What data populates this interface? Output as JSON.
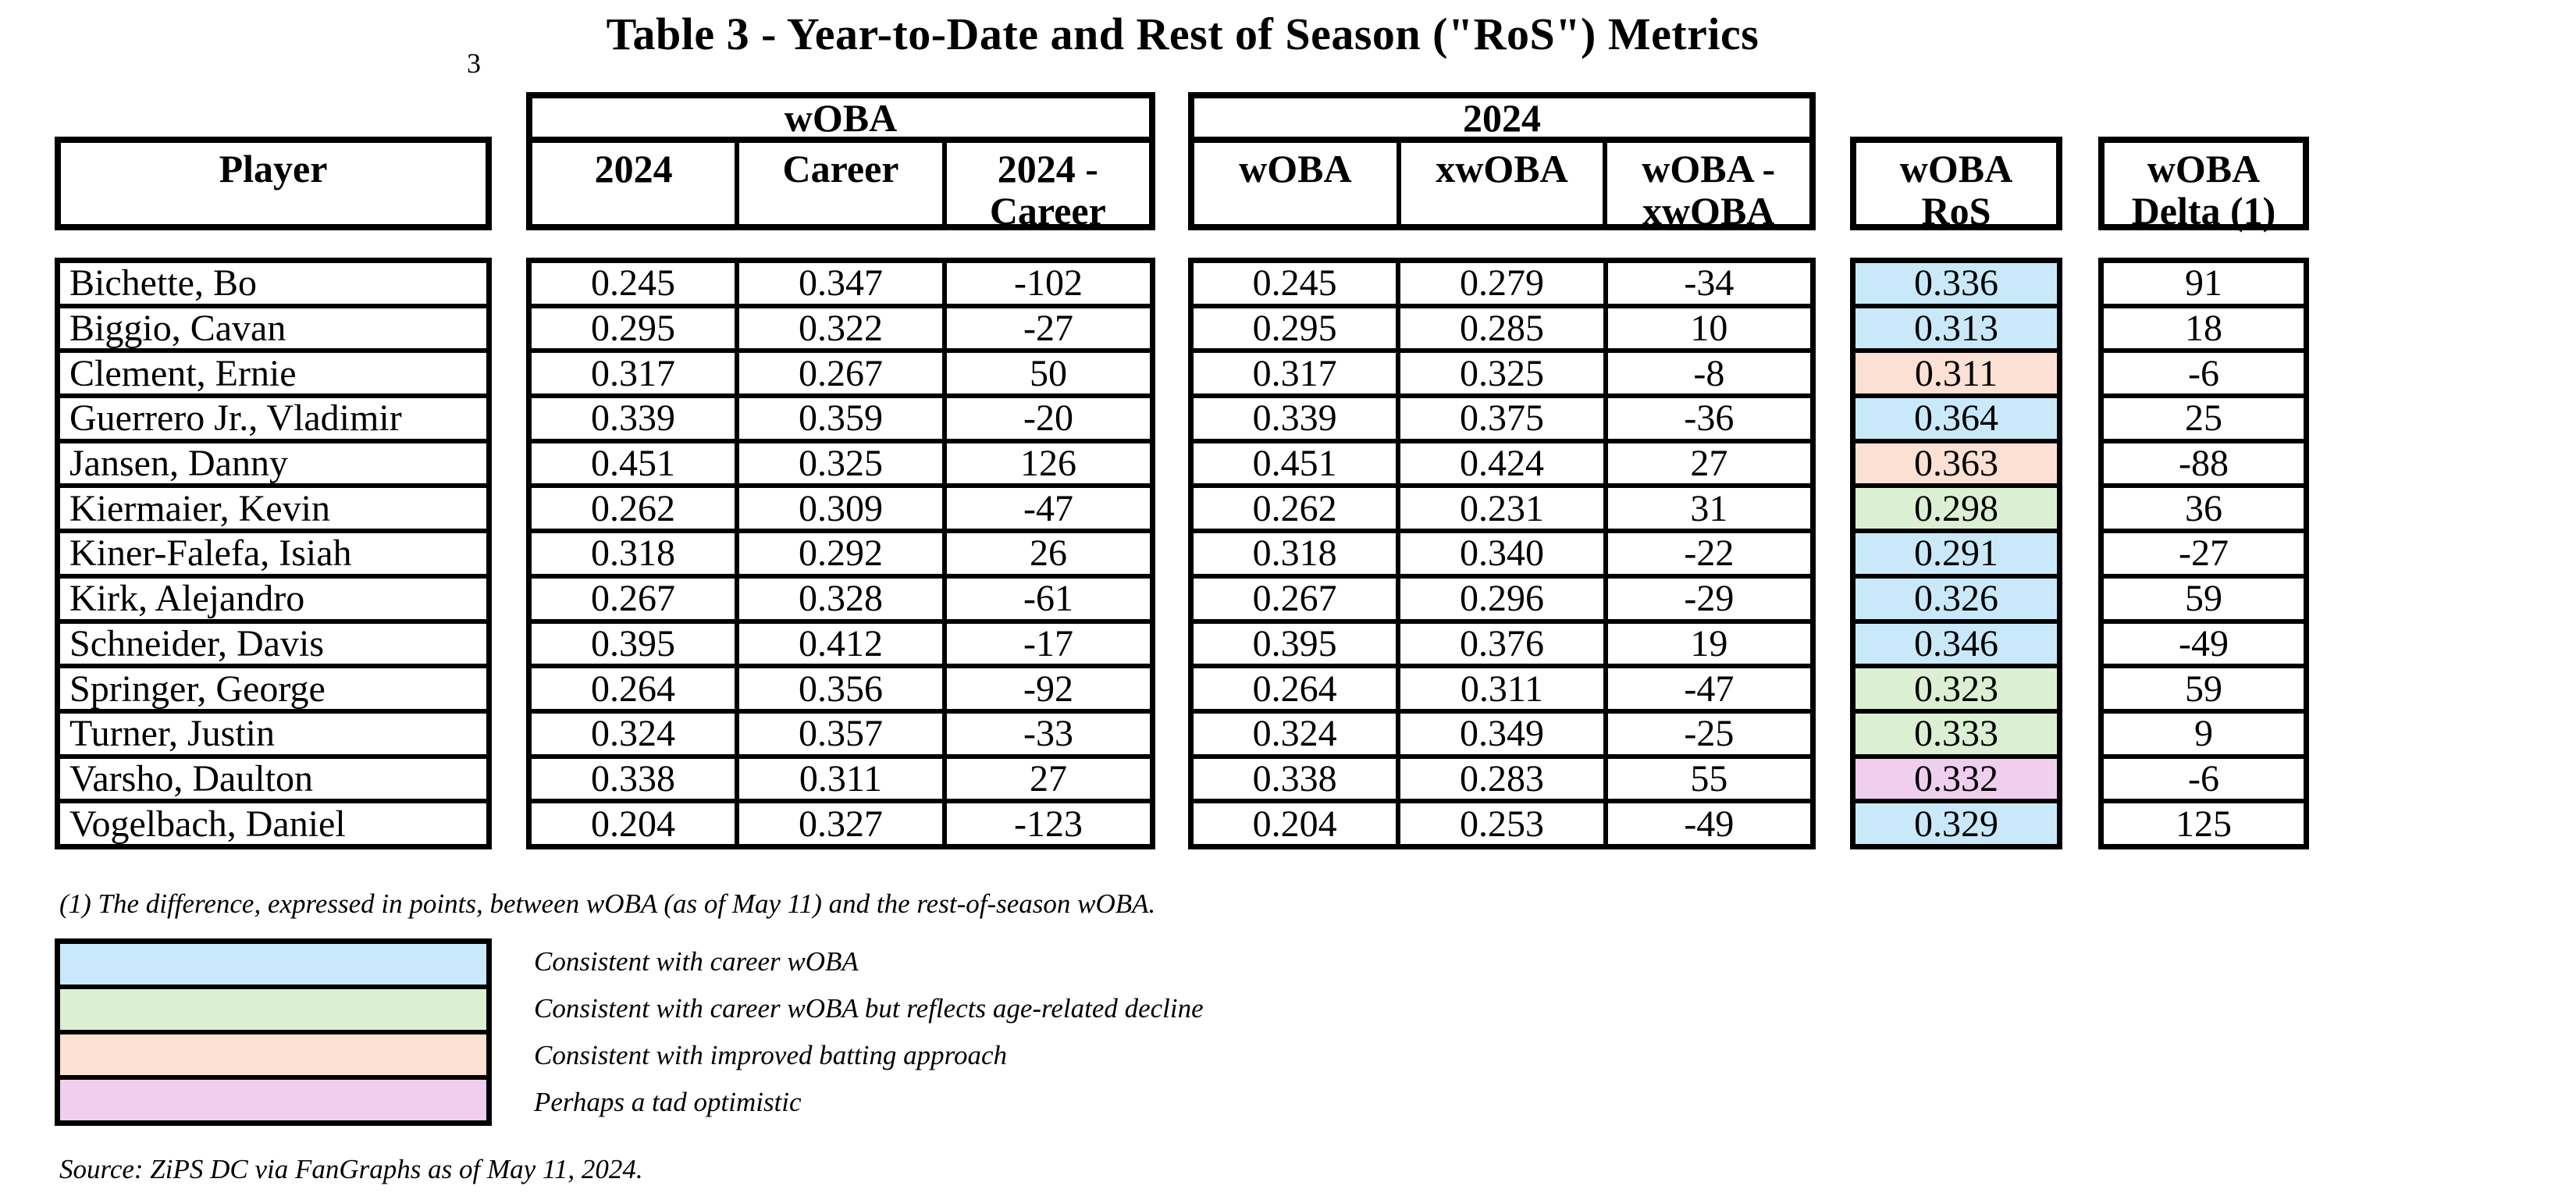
{
  "title": "Table 3 - Year-to-Date and Rest of Season (\"RoS\") Metrics",
  "stray_mark": "3",
  "header": {
    "player": "Player",
    "group_woba": {
      "label": "wOBA",
      "cols": [
        "2024",
        "Career",
        "2024 -\nCareer"
      ]
    },
    "group_2024": {
      "label": "2024",
      "cols": [
        "wOBA",
        "xwOBA",
        "wOBA -\nxwOBA"
      ]
    },
    "ros": "wOBA\nRoS",
    "delta": "wOBA\nDelta (1)"
  },
  "colors": {
    "blue": "#C9E9FA",
    "green": "#DBF0D3",
    "peach": "#FBE0D3",
    "pink": "#F0CFEE"
  },
  "chart_data": {
    "type": "table",
    "title": "Table 3 - Year-to-Date and Rest of Season (\"RoS\") Metrics",
    "column_groups": [
      "wOBA: 2024 / Career / 2024 - Career",
      "2024: wOBA / xwOBA / wOBA - xwOBA",
      "wOBA RoS",
      "wOBA Delta (1)"
    ],
    "columns": [
      "Player",
      "wOBA 2024",
      "wOBA Career",
      "wOBA 2024 - Career",
      "2024 wOBA",
      "2024 xwOBA",
      "2024 wOBA - xwOBA",
      "wOBA RoS",
      "wOBA Delta (1)"
    ],
    "rows": [
      {
        "player": "Bichette, Bo",
        "woba_2024": "0.245",
        "woba_career": "0.347",
        "woba_diff": "-102",
        "woba": "0.245",
        "xwoba": "0.279",
        "woba_xwoba_diff": "-34",
        "ros": "0.336",
        "ros_color": "blue",
        "delta": "91"
      },
      {
        "player": "Biggio, Cavan",
        "woba_2024": "0.295",
        "woba_career": "0.322",
        "woba_diff": "-27",
        "woba": "0.295",
        "xwoba": "0.285",
        "woba_xwoba_diff": "10",
        "ros": "0.313",
        "ros_color": "blue",
        "delta": "18"
      },
      {
        "player": "Clement, Ernie",
        "woba_2024": "0.317",
        "woba_career": "0.267",
        "woba_diff": "50",
        "woba": "0.317",
        "xwoba": "0.325",
        "woba_xwoba_diff": "-8",
        "ros": "0.311",
        "ros_color": "peach",
        "delta": "-6"
      },
      {
        "player": "Guerrero Jr., Vladimir",
        "woba_2024": "0.339",
        "woba_career": "0.359",
        "woba_diff": "-20",
        "woba": "0.339",
        "xwoba": "0.375",
        "woba_xwoba_diff": "-36",
        "ros": "0.364",
        "ros_color": "blue",
        "delta": "25"
      },
      {
        "player": "Jansen, Danny",
        "woba_2024": "0.451",
        "woba_career": "0.325",
        "woba_diff": "126",
        "woba": "0.451",
        "xwoba": "0.424",
        "woba_xwoba_diff": "27",
        "ros": "0.363",
        "ros_color": "peach",
        "delta": "-88"
      },
      {
        "player": "Kiermaier, Kevin",
        "woba_2024": "0.262",
        "woba_career": "0.309",
        "woba_diff": "-47",
        "woba": "0.262",
        "xwoba": "0.231",
        "woba_xwoba_diff": "31",
        "ros": "0.298",
        "ros_color": "green",
        "delta": "36"
      },
      {
        "player": "Kiner-Falefa, Isiah",
        "woba_2024": "0.318",
        "woba_career": "0.292",
        "woba_diff": "26",
        "woba": "0.318",
        "xwoba": "0.340",
        "woba_xwoba_diff": "-22",
        "ros": "0.291",
        "ros_color": "blue",
        "delta": "-27"
      },
      {
        "player": "Kirk, Alejandro",
        "woba_2024": "0.267",
        "woba_career": "0.328",
        "woba_diff": "-61",
        "woba": "0.267",
        "xwoba": "0.296",
        "woba_xwoba_diff": "-29",
        "ros": "0.326",
        "ros_color": "blue",
        "delta": "59"
      },
      {
        "player": "Schneider, Davis",
        "woba_2024": "0.395",
        "woba_career": "0.412",
        "woba_diff": "-17",
        "woba": "0.395",
        "xwoba": "0.376",
        "woba_xwoba_diff": "19",
        "ros": "0.346",
        "ros_color": "blue",
        "delta": "-49"
      },
      {
        "player": "Springer, George",
        "woba_2024": "0.264",
        "woba_career": "0.356",
        "woba_diff": "-92",
        "woba": "0.264",
        "xwoba": "0.311",
        "woba_xwoba_diff": "-47",
        "ros": "0.323",
        "ros_color": "green",
        "delta": "59"
      },
      {
        "player": "Turner, Justin",
        "woba_2024": "0.324",
        "woba_career": "0.357",
        "woba_diff": "-33",
        "woba": "0.324",
        "xwoba": "0.349",
        "woba_xwoba_diff": "-25",
        "ros": "0.333",
        "ros_color": "green",
        "delta": "9"
      },
      {
        "player": "Varsho, Daulton",
        "woba_2024": "0.338",
        "woba_career": "0.311",
        "woba_diff": "27",
        "woba": "0.338",
        "xwoba": "0.283",
        "woba_xwoba_diff": "55",
        "ros": "0.332",
        "ros_color": "pink",
        "delta": "-6"
      },
      {
        "player": "Vogelbach, Daniel",
        "woba_2024": "0.204",
        "woba_career": "0.327",
        "woba_diff": "-123",
        "woba": "0.204",
        "xwoba": "0.253",
        "woba_xwoba_diff": "-49",
        "ros": "0.329",
        "ros_color": "blue",
        "delta": "125"
      }
    ]
  },
  "footnote": "(1)   The difference, expressed in points, between wOBA (as of May 11) and the rest-of-season wOBA.",
  "legend": [
    {
      "color": "blue",
      "label": "Consistent with career wOBA"
    },
    {
      "color": "green",
      "label": "Consistent with career wOBA but reflects age-related decline"
    },
    {
      "color": "peach",
      "label": "Consistent with improved batting approach"
    },
    {
      "color": "pink",
      "label": "Perhaps a tad optimistic"
    }
  ],
  "source": "Source: ZiPS DC via FanGraphs as of May 11, 2024."
}
